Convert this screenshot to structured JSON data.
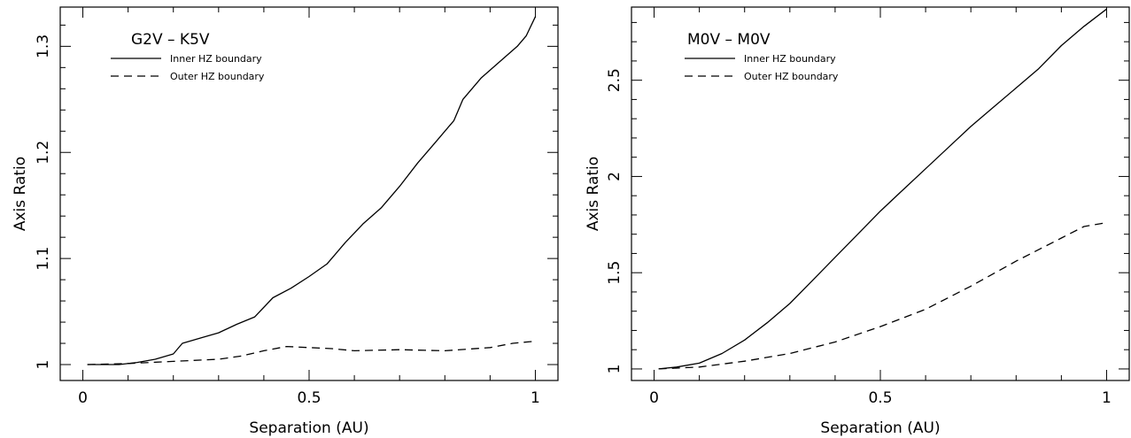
{
  "chart_data": [
    {
      "type": "line",
      "title": "G2V – K5V",
      "xlabel": "Separation (AU)",
      "ylabel": "Axis Ratio",
      "xlim": [
        -0.05,
        1.05
      ],
      "ylim": [
        0.985,
        1.337
      ],
      "xticks": [
        0,
        0.5,
        1
      ],
      "xtick_labels": [
        "0",
        "0.5",
        "1"
      ],
      "yticks": [
        1,
        1.1,
        1.2,
        1.3
      ],
      "ytick_labels": [
        "1",
        "1.1",
        "1.2",
        "1.3"
      ],
      "legend_position": "top-left",
      "series": [
        {
          "name": "Inner HZ boundary",
          "style": "solid",
          "x": [
            0.01,
            0.04,
            0.08,
            0.12,
            0.16,
            0.2,
            0.22,
            0.26,
            0.3,
            0.34,
            0.38,
            0.42,
            0.46,
            0.5,
            0.54,
            0.58,
            0.62,
            0.66,
            0.7,
            0.74,
            0.78,
            0.82,
            0.84,
            0.88,
            0.92,
            0.96,
            0.98,
            1.0
          ],
          "y": [
            1.0,
            1.0,
            1.0,
            1.002,
            1.005,
            1.01,
            1.02,
            1.025,
            1.03,
            1.038,
            1.045,
            1.063,
            1.072,
            1.083,
            1.095,
            1.115,
            1.133,
            1.148,
            1.168,
            1.19,
            1.21,
            1.23,
            1.25,
            1.27,
            1.285,
            1.3,
            1.31,
            1.328
          ]
        },
        {
          "name": "Outer HZ boundary",
          "style": "dashed",
          "x": [
            0.01,
            0.1,
            0.2,
            0.3,
            0.35,
            0.4,
            0.45,
            0.5,
            0.55,
            0.6,
            0.7,
            0.8,
            0.9,
            0.95,
            1.0
          ],
          "y": [
            1.0,
            1.001,
            1.003,
            1.005,
            1.008,
            1.013,
            1.017,
            1.016,
            1.015,
            1.013,
            1.014,
            1.013,
            1.016,
            1.02,
            1.022
          ]
        }
      ]
    },
    {
      "type": "line",
      "title": "M0V – M0V",
      "xlabel": "Separation (AU)",
      "ylabel": "Axis Ratio",
      "xlim": [
        -0.05,
        1.05
      ],
      "ylim": [
        0.94,
        2.88
      ],
      "xticks": [
        0,
        0.5,
        1
      ],
      "xtick_labels": [
        "0",
        "0.5",
        "1"
      ],
      "yticks": [
        1,
        1.5,
        2,
        2.5
      ],
      "ytick_labels": [
        "1",
        "1.5",
        "2",
        "2.5"
      ],
      "legend_position": "top-left",
      "series": [
        {
          "name": "Inner HZ boundary",
          "style": "solid",
          "x": [
            0.01,
            0.05,
            0.1,
            0.15,
            0.2,
            0.25,
            0.3,
            0.35,
            0.4,
            0.45,
            0.5,
            0.55,
            0.6,
            0.65,
            0.7,
            0.75,
            0.8,
            0.85,
            0.9,
            0.95,
            1.0
          ],
          "y": [
            1.0,
            1.01,
            1.03,
            1.08,
            1.15,
            1.24,
            1.34,
            1.46,
            1.58,
            1.7,
            1.82,
            1.93,
            2.04,
            2.15,
            2.26,
            2.36,
            2.46,
            2.56,
            2.68,
            2.78,
            2.87
          ]
        },
        {
          "name": "Outer HZ boundary",
          "style": "dashed",
          "x": [
            0.01,
            0.1,
            0.2,
            0.3,
            0.4,
            0.5,
            0.6,
            0.7,
            0.8,
            0.85,
            0.9,
            0.95,
            1.0
          ],
          "y": [
            1.0,
            1.01,
            1.04,
            1.08,
            1.14,
            1.22,
            1.31,
            1.43,
            1.56,
            1.62,
            1.68,
            1.74,
            1.76
          ]
        }
      ]
    }
  ]
}
